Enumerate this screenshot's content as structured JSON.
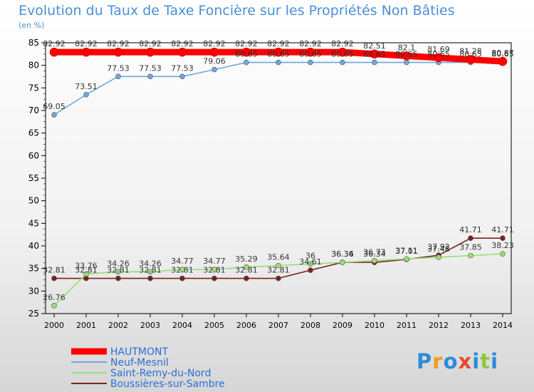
{
  "chart_data": {
    "type": "line",
    "title": "Evolution du Taux de Taxe Foncière sur les Propriétés Non Bâties",
    "unit_label": "(en %)",
    "x": [
      "2000",
      "2001",
      "2002",
      "2003",
      "2004",
      "2005",
      "2006",
      "2007",
      "2008",
      "2009",
      "2010",
      "2011",
      "2012",
      "2013",
      "2014"
    ],
    "ylim": [
      25,
      85
    ],
    "yticks": [
      25,
      30,
      35,
      40,
      45,
      50,
      55,
      60,
      65,
      70,
      75,
      80,
      85
    ],
    "grid": false,
    "legend_position": "bottom-left",
    "series": [
      {
        "name": "HAUTMONT",
        "color": "#ff0000",
        "values": [
          82.92,
          82.92,
          82.92,
          82.92,
          82.92,
          82.92,
          82.92,
          82.92,
          82.92,
          82.92,
          82.51,
          82.1,
          81.69,
          81.28,
          80.87
        ],
        "labels": [
          "82.92",
          "82.92",
          "82.92",
          "82.92",
          "82.92",
          "82.92",
          "82.92",
          "82.92",
          "82.92",
          "82.92",
          "82.51",
          "82.1",
          "81.69",
          "81.28",
          "80.87"
        ]
      },
      {
        "name": "Neuf-Mesnil",
        "color": "#6fa8dc",
        "values": [
          69.05,
          73.51,
          77.53,
          77.53,
          77.53,
          79.06,
          80.65,
          80.65,
          80.65,
          80.65,
          80.65,
          80.65,
          80.65,
          80.65,
          80.65
        ],
        "labels": [
          "69.05",
          "73.51",
          "77.53",
          "77.53",
          "77.53",
          "79.06",
          "80.65",
          "80.65",
          "80.65",
          "80.65",
          "80.65",
          "80.65",
          "80.65",
          "80.65",
          "80.65"
        ]
      },
      {
        "name": "Saint-Remy-du-Nord",
        "color": "#99dd77",
        "values": [
          26.76,
          33.76,
          34.26,
          34.26,
          34.77,
          34.77,
          35.29,
          35.64,
          36,
          36.34,
          36.73,
          37.11,
          37.48,
          37.85,
          38.23
        ],
        "labels": [
          "26.76",
          "33.76",
          "34.26",
          "34.26",
          "34.77",
          "34.77",
          "35.29",
          "35.64",
          "36",
          "36.34",
          "36.73",
          "37.11",
          "37.48",
          "37.85",
          "38.23"
        ]
      },
      {
        "name": "Boussières-sur-Sambre",
        "color": "#7a2020",
        "values": [
          32.81,
          32.81,
          32.81,
          32.81,
          32.81,
          32.81,
          32.81,
          32.81,
          34.61,
          36.36,
          36.34,
          37.01,
          37.92,
          41.71,
          41.71
        ],
        "labels": [
          "32.81",
          "32.81",
          "32.81",
          "32.81",
          "32.81",
          "32.81",
          "32.81",
          "32.81",
          "34.61",
          "36.36",
          "36.34",
          "37.01",
          "37.92",
          "41.71",
          "41.71"
        ]
      }
    ]
  },
  "logo": {
    "text": "Proxiti",
    "colors": [
      "#2e8bd8",
      "#f29a1f",
      "#2e8bd8",
      "#e84b2b",
      "#2e8bd8",
      "#8cc63f",
      "#2e8bd8"
    ]
  }
}
